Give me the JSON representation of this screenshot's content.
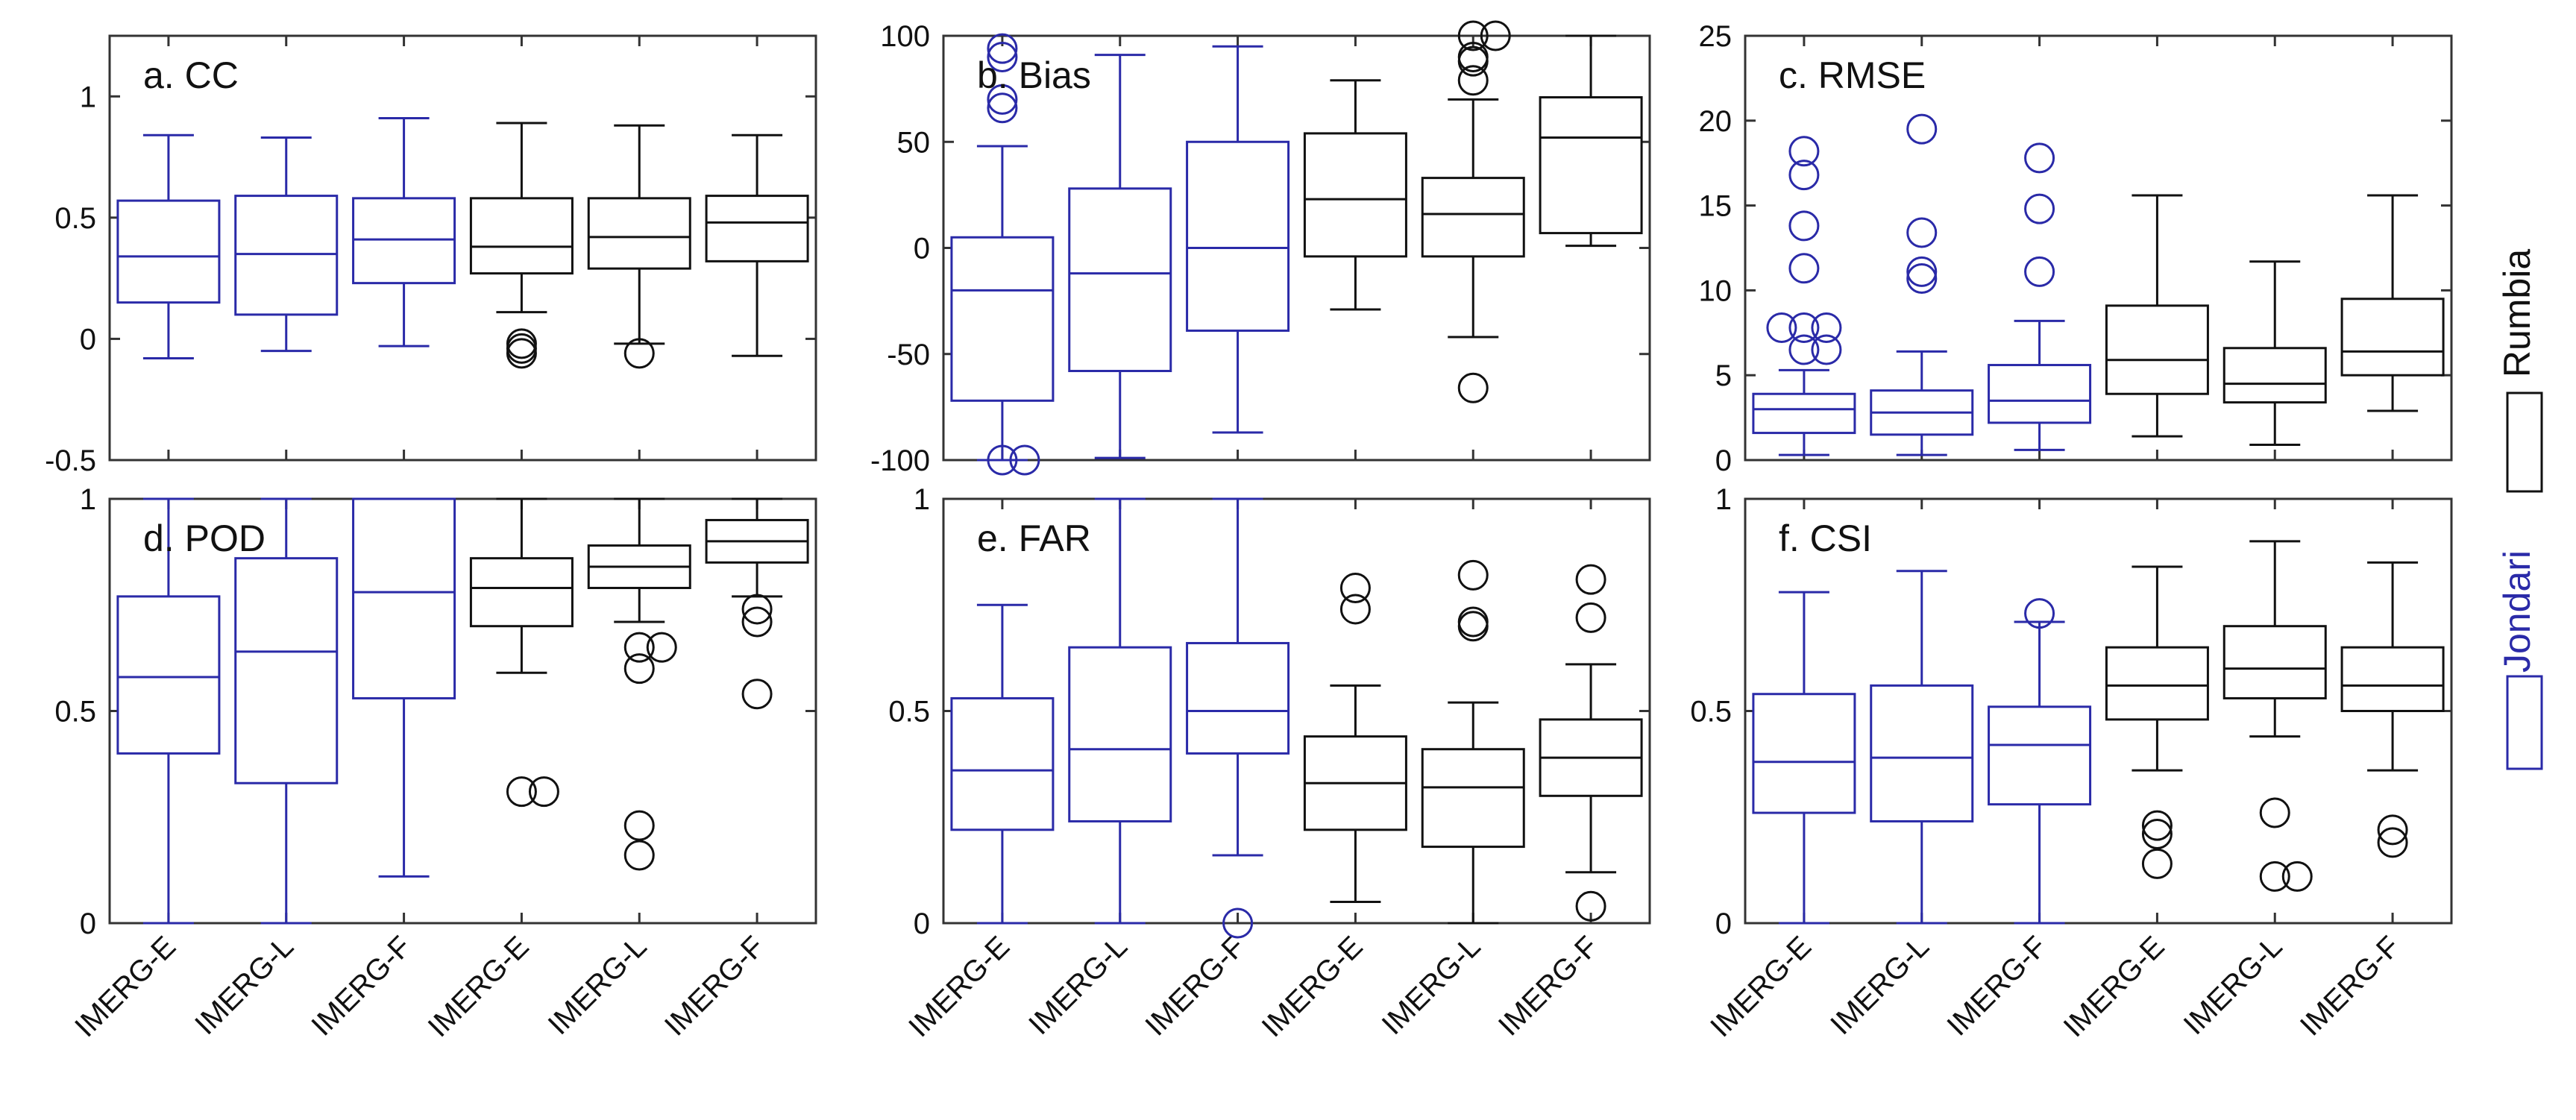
{
  "chart_data": {
    "type": "box",
    "categories": [
      "IMERG-E",
      "IMERG-L",
      "IMERG-F",
      "IMERG-E",
      "IMERG-L",
      "IMERG-F"
    ],
    "groups": [
      {
        "name": "Jondari",
        "color": "#2a2aa8",
        "indices": [
          0,
          1,
          2
        ]
      },
      {
        "name": "Rumbia",
        "color": "#111111",
        "indices": [
          3,
          4,
          5
        ]
      }
    ],
    "legend": {
      "position": "right",
      "items": [
        "Rumbia",
        "Jondari"
      ]
    },
    "panels": [
      {
        "title": "a. CC",
        "ylim": [
          -0.5,
          1.25
        ],
        "yticks": [
          -0.5,
          0,
          0.5,
          1
        ],
        "yticklabels": [
          "-0.5",
          "0",
          "0.5",
          "1"
        ],
        "boxes": [
          {
            "min": -0.08,
            "q1": 0.15,
            "median": 0.34,
            "q3": 0.57,
            "max": 0.84,
            "outliers": []
          },
          {
            "min": -0.05,
            "q1": 0.1,
            "median": 0.35,
            "q3": 0.59,
            "max": 0.83,
            "outliers": []
          },
          {
            "min": -0.03,
            "q1": 0.23,
            "median": 0.41,
            "q3": 0.58,
            "max": 0.91,
            "outliers": []
          },
          {
            "min": 0.11,
            "q1": 0.27,
            "median": 0.38,
            "q3": 0.58,
            "max": 0.89,
            "outliers": [
              -0.02,
              -0.04,
              -0.06
            ]
          },
          {
            "min": -0.02,
            "q1": 0.29,
            "median": 0.42,
            "q3": 0.58,
            "max": 0.88,
            "outliers": [
              -0.06
            ]
          },
          {
            "min": -0.07,
            "q1": 0.32,
            "median": 0.48,
            "q3": 0.59,
            "max": 0.84,
            "outliers": []
          }
        ]
      },
      {
        "title": "b. Bias",
        "ylim": [
          -100,
          100
        ],
        "yticks": [
          -100,
          -50,
          0,
          50,
          100
        ],
        "yticklabels": [
          "-100",
          "-50",
          "0",
          "50",
          "100"
        ],
        "boxes": [
          {
            "min": -100,
            "q1": -72,
            "median": -20,
            "q3": 5,
            "max": 48,
            "outliers": [
              94,
              90,
              70,
              66,
              -100,
              -100
            ]
          },
          {
            "min": -99,
            "q1": -58,
            "median": -12,
            "q3": 28,
            "max": 91,
            "outliers": []
          },
          {
            "min": -87,
            "q1": -39,
            "median": 0,
            "q3": 50,
            "max": 95,
            "outliers": []
          },
          {
            "min": -29,
            "q1": -4,
            "median": 23,
            "q3": 54,
            "max": 79,
            "outliers": []
          },
          {
            "min": -42,
            "q1": -4,
            "median": 16,
            "q3": 33,
            "max": 70,
            "outliers": [
              100,
              100,
              90,
              88,
              79,
              -66
            ]
          },
          {
            "min": 1,
            "q1": 7,
            "median": 52,
            "q3": 71,
            "max": 100,
            "outliers": []
          }
        ]
      },
      {
        "title": "c. RMSE",
        "ylim": [
          0,
          25
        ],
        "yticks": [
          0,
          5,
          10,
          15,
          20,
          25
        ],
        "yticklabels": [
          "0",
          "5",
          "10",
          "15",
          "20",
          "25"
        ],
        "boxes": [
          {
            "min": 0.3,
            "q1": 1.6,
            "median": 3.0,
            "q3": 3.9,
            "max": 5.3,
            "outliers": [
              18.2,
              16.8,
              13.8,
              11.3,
              7.8,
              7.8,
              7.8,
              6.5,
              6.5
            ]
          },
          {
            "min": 0.3,
            "q1": 1.5,
            "median": 2.8,
            "q3": 4.1,
            "max": 6.4,
            "outliers": [
              19.5,
              13.4,
              11.1,
              10.7
            ]
          },
          {
            "min": 0.6,
            "q1": 2.2,
            "median": 3.5,
            "q3": 5.6,
            "max": 8.2,
            "outliers": [
              17.8,
              14.8,
              11.1
            ]
          },
          {
            "min": 1.4,
            "q1": 3.9,
            "median": 5.9,
            "q3": 9.1,
            "max": 15.6,
            "outliers": []
          },
          {
            "min": 0.9,
            "q1": 3.4,
            "median": 4.5,
            "q3": 6.6,
            "max": 11.7,
            "outliers": []
          },
          {
            "min": 2.9,
            "q1": 5.0,
            "median": 6.4,
            "q3": 9.5,
            "max": 15.6,
            "outliers": []
          }
        ]
      },
      {
        "title": "d. POD",
        "ylim": [
          0,
          1
        ],
        "yticks": [
          0,
          0.5,
          1
        ],
        "yticklabels": [
          "0",
          "0.5",
          "1"
        ],
        "boxes": [
          {
            "min": 0,
            "q1": 0.4,
            "median": 0.58,
            "q3": 0.77,
            "max": 1.0,
            "outliers": []
          },
          {
            "min": 0,
            "q1": 0.33,
            "median": 0.64,
            "q3": 0.86,
            "max": 1.0,
            "outliers": []
          },
          {
            "min": 0.11,
            "q1": 0.53,
            "median": 0.78,
            "q3": 1.0,
            "max": 1.0,
            "outliers": []
          },
          {
            "min": 0.59,
            "q1": 0.7,
            "median": 0.79,
            "q3": 0.86,
            "max": 1.0,
            "outliers": [
              0.31,
              0.31
            ]
          },
          {
            "min": 0.71,
            "q1": 0.79,
            "median": 0.84,
            "q3": 0.89,
            "max": 1.0,
            "outliers": [
              0.65,
              0.65,
              0.6,
              0.23,
              0.16
            ]
          },
          {
            "min": 0.77,
            "q1": 0.85,
            "median": 0.9,
            "q3": 0.95,
            "max": 1.0,
            "outliers": [
              0.74,
              0.71,
              0.54
            ]
          }
        ]
      },
      {
        "title": "e. FAR",
        "ylim": [
          0,
          1
        ],
        "yticks": [
          0,
          0.5,
          1
        ],
        "yticklabels": [
          "0",
          "0.5",
          "1"
        ],
        "boxes": [
          {
            "min": 0,
            "q1": 0.22,
            "median": 0.36,
            "q3": 0.53,
            "max": 0.75,
            "outliers": []
          },
          {
            "min": 0,
            "q1": 0.24,
            "median": 0.41,
            "q3": 0.65,
            "max": 1.0,
            "outliers": []
          },
          {
            "min": 0.16,
            "q1": 0.4,
            "median": 0.5,
            "q3": 0.66,
            "max": 1.0,
            "outliers": [
              0
            ]
          },
          {
            "min": 0.05,
            "q1": 0.22,
            "median": 0.33,
            "q3": 0.44,
            "max": 0.56,
            "outliers": [
              0.79,
              0.74
            ]
          },
          {
            "min": 0,
            "q1": 0.18,
            "median": 0.32,
            "q3": 0.41,
            "max": 0.52,
            "outliers": [
              0.82,
              0.71,
              0.7
            ]
          },
          {
            "min": 0.12,
            "q1": 0.3,
            "median": 0.39,
            "q3": 0.48,
            "max": 0.61,
            "outliers": [
              0.81,
              0.72,
              0.04
            ]
          }
        ]
      },
      {
        "title": "f. CSI",
        "ylim": [
          0,
          1
        ],
        "yticks": [
          0,
          0.5,
          1
        ],
        "yticklabels": [
          "0",
          "0.5",
          "1"
        ],
        "boxes": [
          {
            "min": 0,
            "q1": 0.26,
            "median": 0.38,
            "q3": 0.54,
            "max": 0.78,
            "outliers": []
          },
          {
            "min": 0,
            "q1": 0.24,
            "median": 0.39,
            "q3": 0.56,
            "max": 0.83,
            "outliers": []
          },
          {
            "min": 0,
            "q1": 0.28,
            "median": 0.42,
            "q3": 0.51,
            "max": 0.71,
            "outliers": [
              0.73
            ]
          },
          {
            "min": 0.36,
            "q1": 0.48,
            "median": 0.56,
            "q3": 0.65,
            "max": 0.84,
            "outliers": [
              0.23,
              0.21,
              0.14
            ]
          },
          {
            "min": 0.44,
            "q1": 0.53,
            "median": 0.6,
            "q3": 0.7,
            "max": 0.9,
            "outliers": [
              0.26,
              0.11,
              0.11
            ]
          },
          {
            "min": 0.36,
            "q1": 0.5,
            "median": 0.56,
            "q3": 0.65,
            "max": 0.85,
            "outliers": [
              0.22,
              0.19
            ]
          }
        ]
      }
    ]
  }
}
